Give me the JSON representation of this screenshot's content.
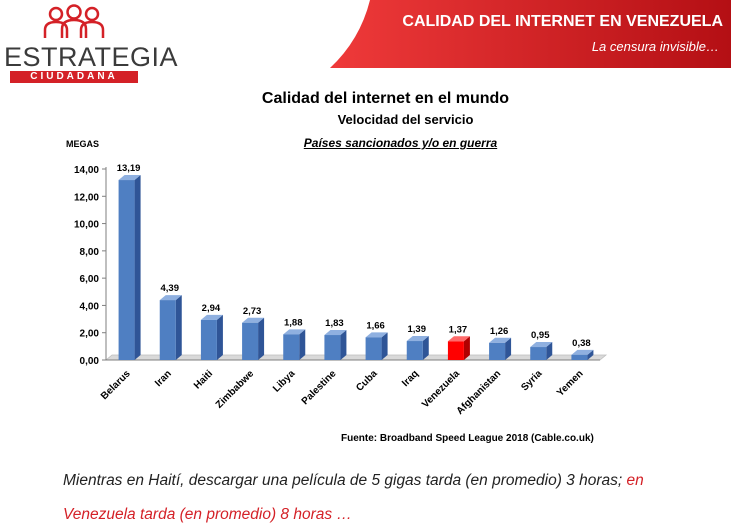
{
  "logo": {
    "name": "ESTRATEGIA",
    "subtitle": "CIUDADANA"
  },
  "banner": {
    "title": "CALIDAD DEL INTERNET EN VENEZUELA",
    "subtitle": "La censura  invisible…"
  },
  "colors": {
    "brand_red": "#d42127",
    "bar_blue": "#4f7fc2",
    "bar_highlight": "#ff0000",
    "banner_gradient_end": "#b40f14"
  },
  "chart_data": {
    "type": "bar",
    "title": "Calidad del internet en el mundo",
    "subtitle": "Velocidad del servicio",
    "subtitle2": "Países sancionados y/o en guerra",
    "ylabel": "MEGAS",
    "xlabel": "",
    "ylim": [
      0,
      14
    ],
    "yticks": [
      "0,00",
      "2,00",
      "4,00",
      "6,00",
      "8,00",
      "10,00",
      "12,00",
      "14,00"
    ],
    "categories": [
      "Belarus",
      "Iran",
      "Haiti",
      "Zimbabwe",
      "Libya",
      "Palestine",
      "Cuba",
      "Iraq",
      "Venezuela",
      "Afghanistan",
      "Syria",
      "Yemen"
    ],
    "values": [
      13.19,
      4.39,
      2.94,
      2.73,
      1.88,
      1.83,
      1.66,
      1.39,
      1.37,
      1.26,
      0.95,
      0.38
    ],
    "value_labels": [
      "13,19",
      "4,39",
      "2,94",
      "2,73",
      "1,88",
      "1,83",
      "1,66",
      "1,39",
      "1,37",
      "1,26",
      "0,95",
      "0,38"
    ],
    "highlight": "Venezuela",
    "grid": false,
    "legend": "none",
    "source": "Fuente:  Broadband Speed League 2018 (Cable.co.uk)"
  },
  "note": {
    "line1_a": "Mientras en Haití, descargar una película de 5 gigas tarda (en promedio) 3 horas; ",
    "line1_b": "en",
    "line2": "Venezuela tarda (en promedio) 8 horas …"
  }
}
